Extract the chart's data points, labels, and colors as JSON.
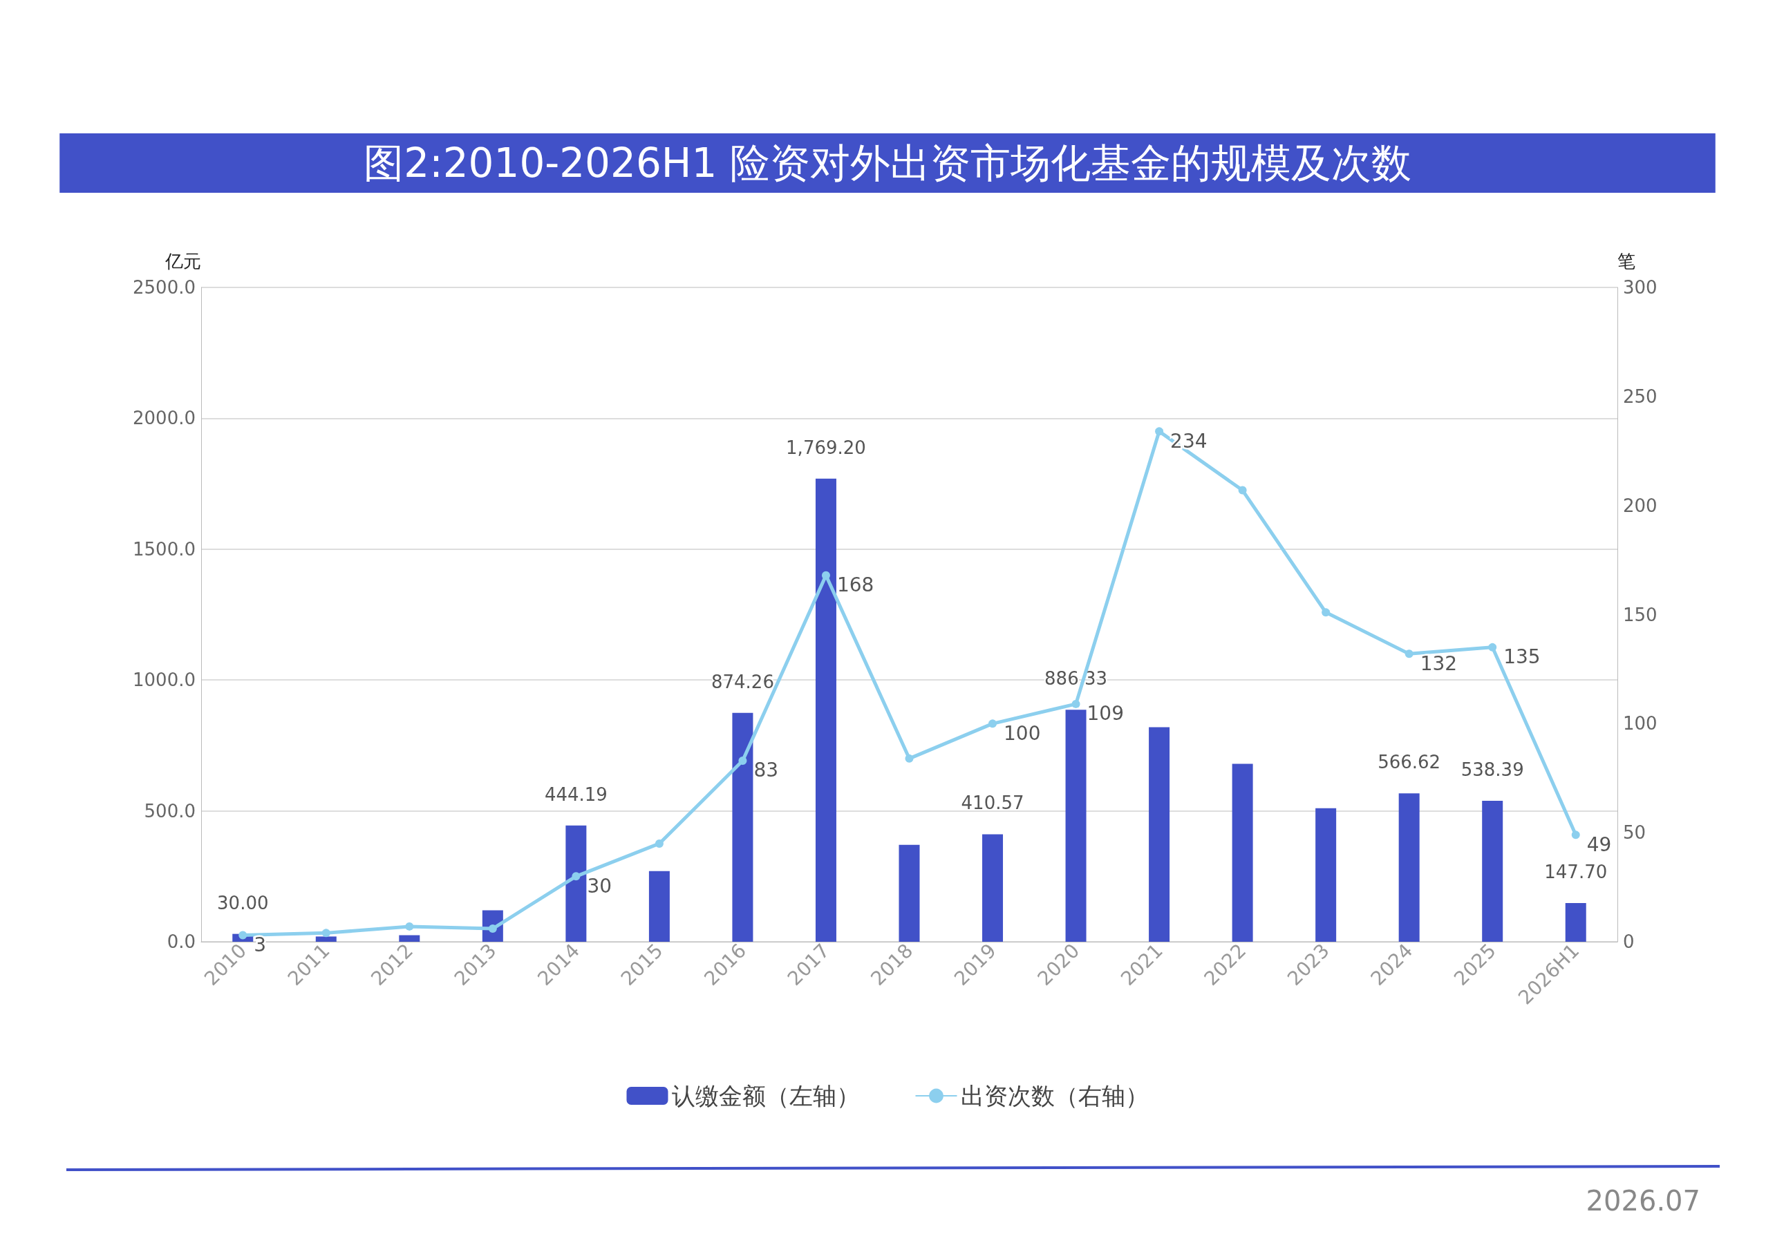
{
  "chart_data": {
    "type": "bar",
    "title": "图2:2010-2026H1 险资对外出资市场化基金的规模及次数",
    "ylabel": "亿元",
    "y2label": "笔",
    "categories": [
      "2010",
      "2011",
      "2012",
      "2013",
      "2014",
      "2015",
      "2016",
      "2017",
      "2018",
      "2019",
      "2020",
      "2021",
      "2022",
      "2023",
      "2024",
      "2025",
      "2026H1"
    ],
    "series": [
      {
        "name": "认缴金额（左轴）",
        "color": "#4151c8",
        "values": [
          30.0,
          20,
          25,
          120,
          444.19,
          270,
          874.26,
          1769.2,
          370,
          410.57,
          886.33,
          820,
          680,
          510,
          566.62,
          538.39,
          147.7
        ],
        "value_labels": [
          "30.00",
          null,
          null,
          null,
          "444.19",
          null,
          "874.26",
          "1,769.20",
          null,
          "410.57",
          "886.33",
          null,
          null,
          null,
          "566.62",
          "538.39",
          "147.70"
        ]
      },
      {
        "name": "出资次数（右轴）",
        "type": "line",
        "axis": "y2",
        "color": "#8ccfee",
        "marker": "circle",
        "values": [
          3,
          4,
          7,
          6,
          30,
          45,
          83,
          168,
          84,
          100,
          109,
          234,
          207,
          151,
          132,
          135,
          49
        ],
        "value_labels": [
          "3",
          null,
          null,
          null,
          "30",
          null,
          "83",
          "168",
          null,
          "100",
          "109",
          "234",
          null,
          null,
          "132",
          "135",
          "49"
        ]
      }
    ],
    "ylim": [
      0,
      2500
    ],
    "yticks": [
      {
        "value": 0,
        "label": "0.0"
      },
      {
        "value": 500,
        "label": "500.0"
      },
      {
        "value": 1000,
        "label": "1000.0"
      },
      {
        "value": 1500,
        "label": "1500.0"
      },
      {
        "value": 2000,
        "label": "2000.0"
      },
      {
        "value": 2500,
        "label": "2500.0"
      }
    ],
    "y2lim": [
      0,
      300
    ],
    "y2ticks": [
      0,
      50,
      100,
      150,
      200,
      250,
      300
    ],
    "grid": "y",
    "legend": "bottom",
    "annotations": [
      "2026.07"
    ]
  }
}
